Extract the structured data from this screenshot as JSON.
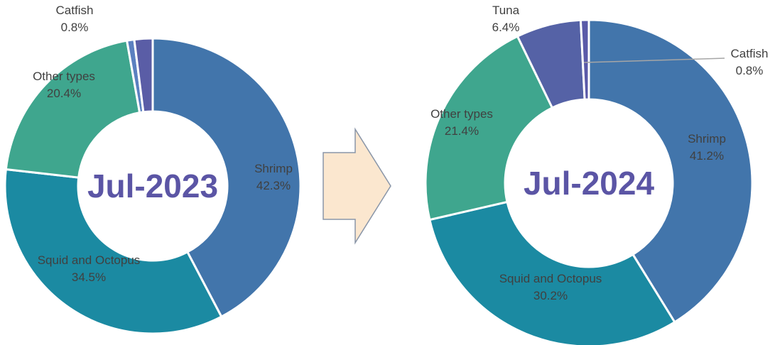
{
  "chart_data": [
    {
      "type": "donut",
      "title": "Jul-2023",
      "categories": [
        "Shrimp",
        "Squid and Octopus",
        "Other types",
        "Catfish",
        null
      ],
      "values": [
        42.3,
        34.5,
        20.4,
        0.8,
        2.0
      ],
      "value_labels": [
        "42.3%",
        "34.5%",
        "20.4%",
        "0.8%",
        null
      ],
      "colors": [
        "#4275ab",
        "#1b8aa2",
        "#3fa68e",
        "#5b80c0",
        "#5a5da6"
      ]
    },
    {
      "type": "donut",
      "title": "Jul-2024",
      "categories": [
        "Shrimp",
        "Squid and Octopus",
        "Other types",
        "Tuna",
        "Catfish"
      ],
      "values": [
        41.2,
        30.2,
        21.4,
        6.4,
        0.8
      ],
      "value_labels": [
        "41.2%",
        "30.2%",
        "21.4%",
        "6.4%",
        "0.8%"
      ],
      "colors": [
        "#4275ab",
        "#1b8aa2",
        "#3fa68e",
        "#5562a6",
        "#5a5aa8"
      ]
    }
  ]
}
